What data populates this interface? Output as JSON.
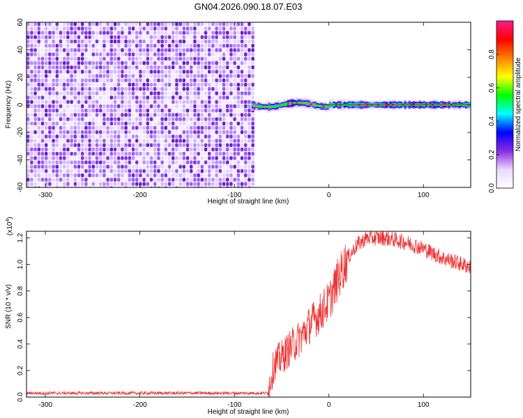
{
  "title": "GN04.2026.090.18.07.E03",
  "chart_data": [
    {
      "type": "heatmap",
      "name": "spectrogram",
      "xlabel": "Height of straight line (km)",
      "ylabel": "Frequency (Hz)",
      "xlim": [
        -320,
        150
      ],
      "ylim": [
        -60,
        60
      ],
      "xticks": [
        -300,
        -200,
        -100,
        0,
        100
      ],
      "yticks": [
        -60,
        -40,
        -20,
        0,
        20,
        40,
        60
      ],
      "noise_region_x": [
        -320,
        -82
      ],
      "signal_region_x": [
        -82,
        150
      ],
      "signal_frequency": 0,
      "colorbar": {
        "label": "Normalized spectral amplitude",
        "range": [
          0,
          1
        ],
        "ticks": [
          "0.0",
          "0.2",
          "0.4",
          "0.6",
          "0.8"
        ],
        "colors": [
          "#ffffff",
          "#e8d8ff",
          "#8a2be2",
          "#0000ff",
          "#00ffff",
          "#00ff00",
          "#ffff00",
          "#ff8000",
          "#ff0000",
          "#ff1a8c"
        ]
      }
    },
    {
      "type": "line",
      "name": "snr",
      "xlabel": "Height of straight line (km)",
      "ylabel": "SNR (10 * v/v)",
      "yscale_label": "(x10",
      "yscale_exp": "4",
      "y_multiplier": 10000,
      "xlim": [
        -320,
        150
      ],
      "ylim": [
        0,
        1.25
      ],
      "xticks": [
        -300,
        -200,
        -100,
        0,
        100
      ],
      "yticks": [
        "0.0",
        "0.2",
        "0.4",
        "0.6",
        "0.8",
        "1.0",
        "1.2"
      ],
      "color": "#ee3333",
      "series": {
        "x": [
          -320,
          -250,
          -200,
          -150,
          -100,
          -65,
          -62,
          -58,
          -50,
          -40,
          -30,
          -20,
          -10,
          0,
          10,
          20,
          30,
          40,
          60,
          80,
          100,
          120,
          150
        ],
        "y": [
          0.03,
          0.03,
          0.03,
          0.03,
          0.03,
          0.03,
          0.12,
          0.25,
          0.3,
          0.38,
          0.45,
          0.55,
          0.63,
          0.72,
          0.9,
          1.05,
          1.15,
          1.2,
          1.2,
          1.17,
          1.12,
          1.05,
          0.98
        ]
      }
    }
  ]
}
